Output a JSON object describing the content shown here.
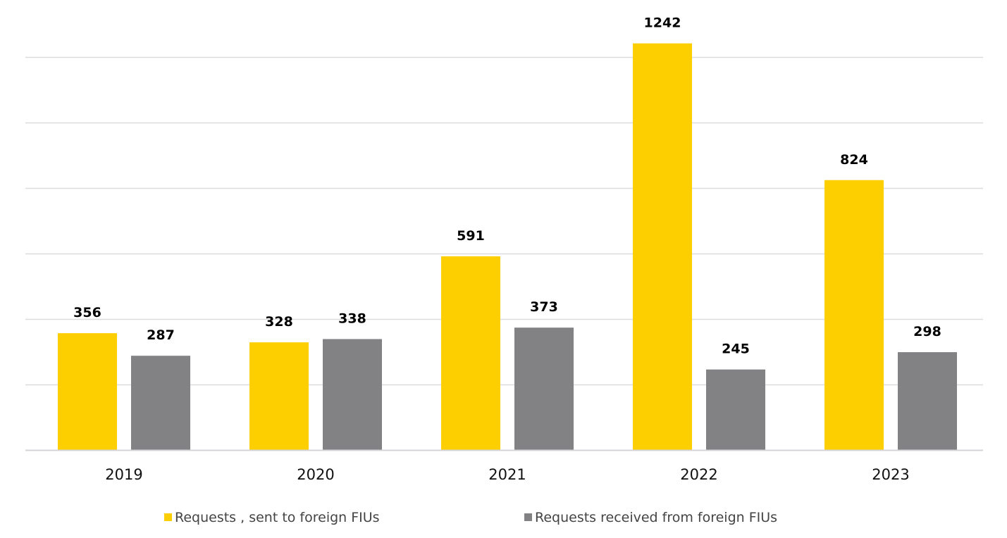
{
  "chart_data": {
    "type": "bar",
    "title": "",
    "xlabel": "",
    "ylabel": "",
    "categories": [
      "2019",
      "2020",
      "2021",
      "2022",
      "2023"
    ],
    "series": [
      {
        "name": "Requests , sent to foreign FIUs",
        "color": "#FDCE00",
        "values": [
          356,
          328,
          591,
          1242,
          824
        ]
      },
      {
        "name": "Requests received from foreign FIUs",
        "color": "#828285",
        "values": [
          287,
          338,
          373,
          245,
          298
        ]
      }
    ],
    "ylim": [
      0,
      1200
    ],
    "yticks": [
      0,
      200,
      400,
      600,
      800,
      1000,
      1200
    ],
    "grid": true,
    "y_axis_labels_shown": false,
    "data_labels": true,
    "legend": {
      "position": "bottom"
    }
  }
}
